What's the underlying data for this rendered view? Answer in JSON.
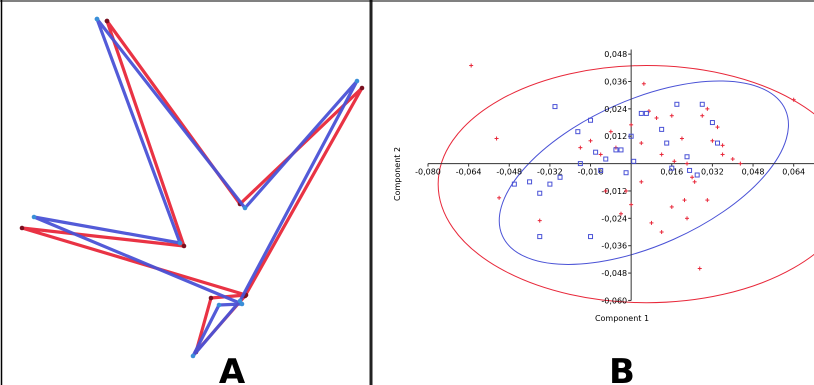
{
  "panels": {
    "a": {
      "letter": "A"
    },
    "b": {
      "letter": "B"
    }
  },
  "colors": {
    "red": "#e8283a",
    "blue": "#4a52d6",
    "frame": "#000000",
    "divider": "#222222"
  },
  "chart_data": [
    {
      "type": "line",
      "panel": "A",
      "description_of_series": "shape outlines",
      "series": [
        {
          "color": "#e8283a",
          "points": [
            [
              107,
              21
            ],
            [
              184,
              246
            ],
            [
              22,
              228
            ],
            [
              246,
              295
            ],
            [
              211,
              298
            ],
            [
              196,
              352
            ],
            [
              245,
              296
            ],
            [
              362,
              88
            ],
            [
              240,
              204
            ],
            [
              107,
              21
            ]
          ]
        },
        {
          "color": "#4a52d6",
          "points": [
            [
              97,
              19
            ],
            [
              180,
              243
            ],
            [
              34,
              217
            ],
            [
              242,
              304
            ],
            [
              219,
              305
            ],
            [
              193,
              356
            ],
            [
              240,
              301
            ],
            [
              357,
              81
            ],
            [
              245,
              208
            ],
            [
              97,
              19
            ]
          ]
        }
      ]
    },
    {
      "type": "scatter",
      "panel": "B",
      "xlabel": "Component 1",
      "ylabel": "Component 2",
      "xlim": [
        -0.08,
        0.072
      ],
      "ylim": [
        -0.062,
        0.052
      ],
      "xticks": [
        -0.08,
        -0.064,
        -0.048,
        -0.032,
        -0.016,
        0.016,
        0.032,
        0.048,
        0.064
      ],
      "xtick_labels": [
        "-0,080",
        "-0,064",
        "-0,048",
        "-0,032",
        "-0,016",
        "0,016",
        "0,032",
        "0,048",
        "0,064"
      ],
      "yticks": [
        0.048,
        0.036,
        0.024,
        0.012,
        -0.012,
        -0.024,
        -0.036,
        -0.048,
        -0.06
      ],
      "ytick_labels": [
        "0,048",
        "0,036",
        "0,024",
        "0,012",
        "-0,012",
        "-0,024",
        "-0,036",
        "-0,048",
        "-0,060"
      ],
      "series": [
        {
          "marker": "plus",
          "color": "#e8283a",
          "points": [
            [
              -0.063,
              0.043
            ],
            [
              -0.053,
              0.011
            ],
            [
              -0.052,
              -0.015
            ],
            [
              -0.036,
              -0.025
            ],
            [
              -0.02,
              0.007
            ],
            [
              -0.016,
              0.01
            ],
            [
              -0.01,
              -0.012
            ],
            [
              -0.008,
              0.014
            ],
            [
              -0.006,
              0.007
            ],
            [
              -0.012,
              0.004
            ],
            [
              0.0,
              0.017
            ],
            [
              0.004,
              0.009
            ],
            [
              0.005,
              0.035
            ],
            [
              0.007,
              0.023
            ],
            [
              0.01,
              0.02
            ],
            [
              0.012,
              0.004
            ],
            [
              0.016,
              0.021
            ],
            [
              0.017,
              0.001
            ],
            [
              0.02,
              0.011
            ],
            [
              0.022,
              0.0
            ],
            [
              0.024,
              -0.006
            ],
            [
              0.028,
              0.021
            ],
            [
              0.03,
              0.024
            ],
            [
              0.032,
              0.01
            ],
            [
              0.034,
              0.016
            ],
            [
              0.036,
              0.004
            ],
            [
              0.036,
              0.008
            ],
            [
              0.04,
              0.002
            ],
            [
              0.043,
              0.0
            ],
            [
              0.021,
              -0.016
            ],
            [
              0.025,
              -0.008
            ],
            [
              0.016,
              -0.019
            ],
            [
              0.022,
              -0.024
            ],
            [
              0.012,
              -0.03
            ],
            [
              0.008,
              -0.026
            ],
            [
              0.004,
              -0.008
            ],
            [
              -0.002,
              -0.012
            ],
            [
              0.0,
              -0.018
            ],
            [
              -0.004,
              -0.022
            ],
            [
              0.03,
              -0.016
            ],
            [
              0.027,
              -0.046
            ],
            [
              0.064,
              0.028
            ]
          ]
        },
        {
          "marker": "square",
          "color": "#4a52d6",
          "points": [
            [
              -0.03,
              0.025
            ],
            [
              -0.016,
              0.019
            ],
            [
              -0.021,
              0.014
            ],
            [
              -0.014,
              0.005
            ],
            [
              -0.02,
              0.0
            ],
            [
              -0.012,
              -0.003
            ],
            [
              -0.028,
              -0.006
            ],
            [
              -0.032,
              -0.009
            ],
            [
              -0.036,
              -0.013
            ],
            [
              -0.04,
              -0.008
            ],
            [
              -0.046,
              -0.009
            ],
            [
              -0.036,
              -0.032
            ],
            [
              -0.016,
              -0.032
            ],
            [
              -0.01,
              0.002
            ],
            [
              -0.006,
              0.006
            ],
            [
              -0.004,
              0.006
            ],
            [
              -0.002,
              -0.004
            ],
            [
              0.0,
              0.012
            ],
            [
              0.001,
              0.001
            ],
            [
              0.004,
              0.022
            ],
            [
              0.006,
              0.022
            ],
            [
              0.012,
              0.015
            ],
            [
              0.014,
              0.009
            ],
            [
              0.022,
              0.003
            ],
            [
              0.023,
              -0.003
            ],
            [
              0.026,
              -0.005
            ],
            [
              0.028,
              0.026
            ],
            [
              0.032,
              0.018
            ],
            [
              0.034,
              0.009
            ],
            [
              0.016,
              -0.002
            ],
            [
              0.018,
              0.026
            ]
          ]
        }
      ],
      "ellipses": [
        {
          "color": "#e8283a",
          "center": [
            0.006,
            -0.009
          ],
          "angle_deg": 0,
          "semi_axes_data": [
            0.082,
            0.052
          ]
        },
        {
          "color": "#4a52d6",
          "center": [
            0.005,
            -0.004
          ],
          "angle_deg": 24,
          "semi_axes_data": [
            0.061,
            0.032
          ]
        }
      ]
    }
  ]
}
